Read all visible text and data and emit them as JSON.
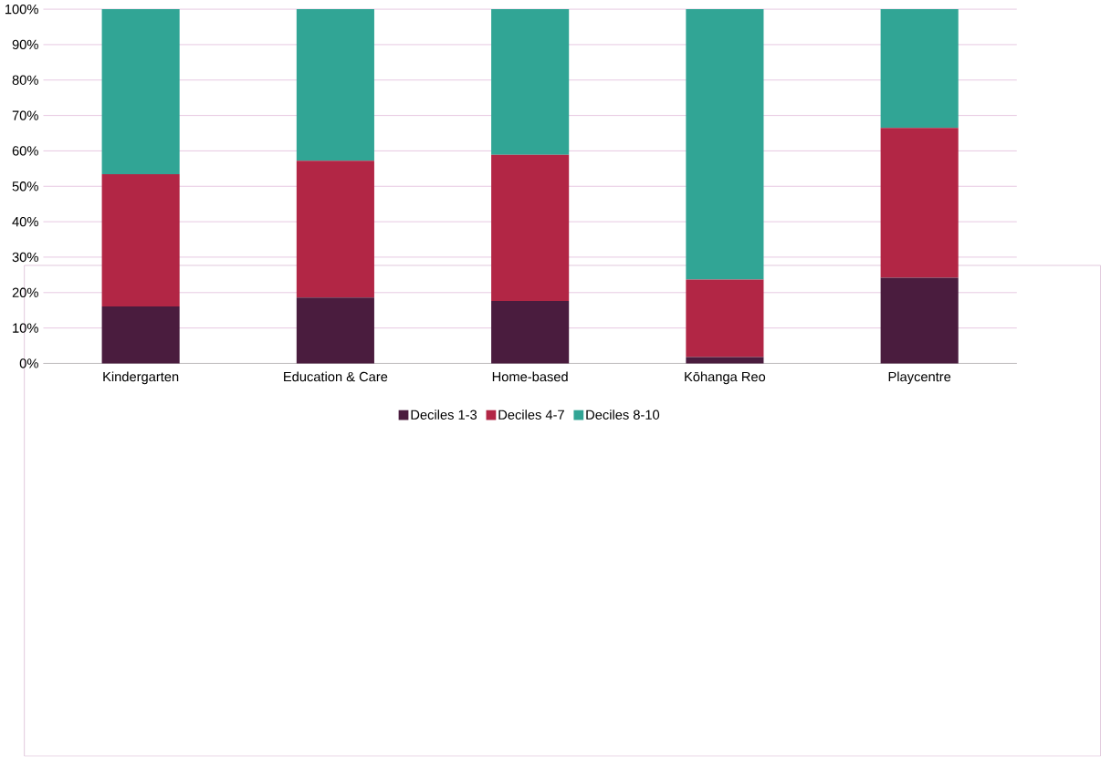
{
  "chart_data": {
    "type": "bar",
    "stacked": true,
    "categories": [
      "Kindergarten",
      "Education & Care",
      "Home-based",
      "Kōhanga Reo",
      "Playcentre"
    ],
    "series": [
      {
        "name": "Deciles 1-3",
        "color": "#4a1c3e",
        "values": [
          16.1,
          18.6,
          17.6,
          1.8,
          24.2
        ]
      },
      {
        "name": "Deciles 4-7",
        "color": "#b22645",
        "values": [
          37.3,
          38.6,
          41.3,
          21.9,
          42.3
        ]
      },
      {
        "name": "Deciles 8-10",
        "color": "#31a595",
        "values": [
          46.6,
          42.8,
          41.1,
          76.3,
          33.5
        ]
      }
    ],
    "ylim": [
      0,
      100
    ],
    "yticks": [
      {
        "value": 0,
        "label": "0%"
      },
      {
        "value": 10,
        "label": "10%"
      },
      {
        "value": 20,
        "label": "20%"
      },
      {
        "value": 30,
        "label": "30%"
      },
      {
        "value": 40,
        "label": "40%"
      },
      {
        "value": 50,
        "label": "50%"
      },
      {
        "value": 60,
        "label": "60%"
      },
      {
        "value": 70,
        "label": "70%"
      },
      {
        "value": 80,
        "label": "80%"
      },
      {
        "value": 90,
        "label": "90%"
      },
      {
        "value": 100,
        "label": "100%"
      }
    ],
    "grid": "y",
    "legend": "bottom"
  }
}
